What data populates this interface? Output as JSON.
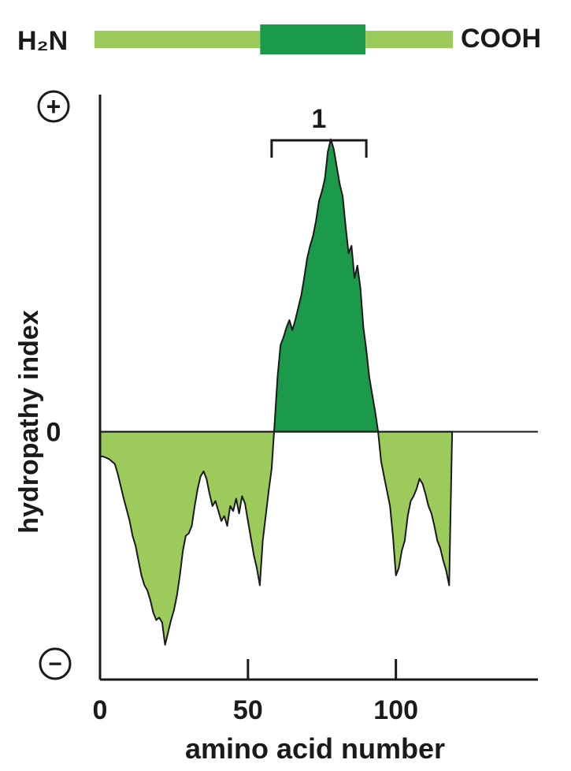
{
  "colors": {
    "light_green": "#9CCB5B",
    "dark_green": "#1A9A4A",
    "ink": "#1a1a1a"
  },
  "protein_bar": {
    "n_terminus": "H₂N",
    "c_terminus": "COOH",
    "length": 119,
    "segments": [
      {
        "start": 0,
        "end": 55,
        "type": "hydrophilic"
      },
      {
        "start": 55,
        "end": 90,
        "type": "membrane-spanning"
      },
      {
        "start": 90,
        "end": 119,
        "type": "hydrophilic"
      }
    ]
  },
  "chart_data": {
    "type": "area",
    "xlabel": "amino acid number",
    "ylabel": "hydropathy index",
    "x_ticks": [
      0,
      50,
      100
    ],
    "x_tick_labels": [
      "0",
      "50",
      "100"
    ],
    "y_zero_label": "0",
    "y_plus_label": "+",
    "y_minus_label": "−",
    "xlim": [
      0,
      148
    ],
    "ylim": [
      -1.0,
      1.36
    ],
    "bracket": {
      "label": "1",
      "start": 58,
      "end": 90
    },
    "series": [
      {
        "x": [
          0,
          1,
          3,
          5,
          6,
          8,
          10,
          11,
          12,
          13,
          14,
          15,
          16,
          17,
          18,
          19,
          20,
          21,
          22,
          23,
          24,
          25,
          26,
          27,
          28,
          29,
          30,
          31,
          32,
          33,
          34,
          35,
          36,
          37,
          38,
          39,
          40,
          41,
          42,
          43,
          44,
          45,
          46,
          47,
          48,
          49,
          50,
          51,
          52,
          53,
          54,
          55,
          56,
          57,
          58,
          59,
          60,
          61,
          62,
          63,
          64,
          65,
          66,
          67,
          68,
          69,
          70,
          71,
          72,
          73,
          74,
          75,
          76,
          77,
          78,
          79,
          80,
          81,
          82,
          83,
          84,
          85,
          86,
          87,
          88,
          89,
          90,
          91,
          92,
          93,
          94,
          95,
          96,
          97,
          98,
          99,
          100,
          101,
          102,
          103,
          104,
          105,
          106,
          107,
          108,
          109,
          110,
          111,
          112,
          113,
          114,
          115,
          116,
          117,
          118,
          119
        ],
        "y": [
          -0.1,
          -0.1,
          -0.11,
          -0.13,
          -0.17,
          -0.27,
          -0.36,
          -0.42,
          -0.46,
          -0.52,
          -0.58,
          -0.62,
          -0.64,
          -0.68,
          -0.73,
          -0.76,
          -0.75,
          -0.77,
          -0.86,
          -0.81,
          -0.76,
          -0.72,
          -0.66,
          -0.58,
          -0.48,
          -0.42,
          -0.41,
          -0.38,
          -0.3,
          -0.23,
          -0.18,
          -0.16,
          -0.19,
          -0.25,
          -0.3,
          -0.28,
          -0.32,
          -0.36,
          -0.34,
          -0.38,
          -0.3,
          -0.32,
          -0.27,
          -0.33,
          -0.26,
          -0.29,
          -0.36,
          -0.43,
          -0.5,
          -0.55,
          -0.62,
          -0.44,
          -0.34,
          -0.24,
          -0.15,
          0.03,
          0.22,
          0.35,
          0.38,
          0.42,
          0.45,
          0.41,
          0.45,
          0.5,
          0.55,
          0.62,
          0.7,
          0.75,
          0.79,
          0.85,
          0.93,
          0.97,
          1.02,
          1.13,
          1.18,
          1.14,
          1.07,
          1.0,
          0.95,
          0.83,
          0.72,
          0.75,
          0.62,
          0.67,
          0.58,
          0.42,
          0.33,
          0.22,
          0.15,
          0.08,
          0.0,
          -0.12,
          -0.18,
          -0.24,
          -0.3,
          -0.42,
          -0.58,
          -0.55,
          -0.48,
          -0.44,
          -0.34,
          -0.28,
          -0.26,
          -0.23,
          -0.19,
          -0.21,
          -0.25,
          -0.3,
          -0.33,
          -0.38,
          -0.44,
          -0.47,
          -0.52,
          -0.56,
          -0.62,
          0.0
        ]
      }
    ]
  }
}
